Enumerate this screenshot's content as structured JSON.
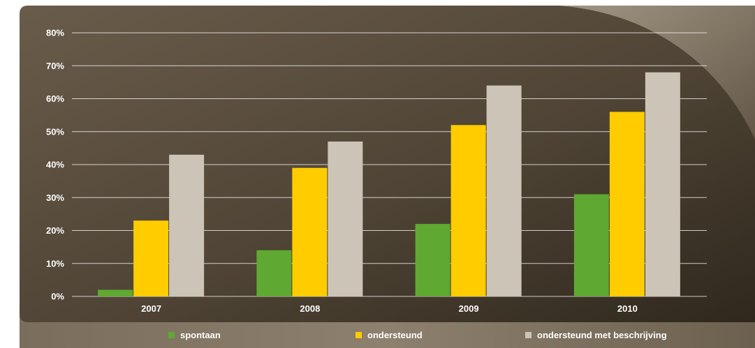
{
  "chart_data": {
    "type": "bar",
    "categories": [
      "2007",
      "2008",
      "2009",
      "2010"
    ],
    "series": [
      {
        "name": "spontaan",
        "values": [
          2,
          14,
          22,
          31
        ],
        "color": "#5fa831"
      },
      {
        "name": "ondersteund",
        "values": [
          23,
          39,
          52,
          56
        ],
        "color": "#ffcc00"
      },
      {
        "name": "ondersteund met beschrijving",
        "values": [
          43,
          47,
          64,
          68
        ],
        "color": "#cdc4b8"
      }
    ],
    "ylim": [
      0,
      80
    ],
    "yticks": [
      "0%",
      "10%",
      "20%",
      "30%",
      "40%",
      "50%",
      "60%",
      "70%",
      "80%"
    ],
    "grid": true,
    "legend_position": "bottom",
    "colors": {
      "background_dark": "#3a3124",
      "background_light": "#6a5c4b",
      "gridline": "#ffffff",
      "text": "#ffffff"
    }
  }
}
